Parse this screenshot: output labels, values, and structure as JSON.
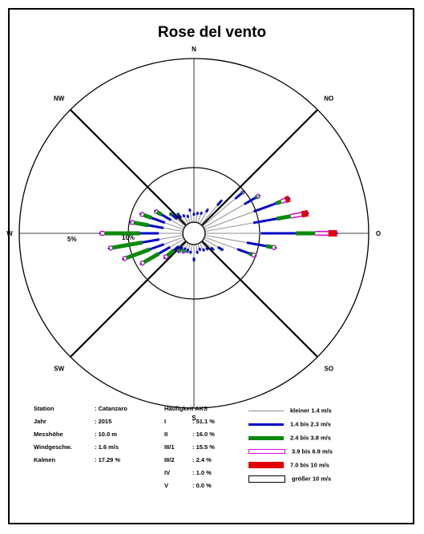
{
  "chart_data": {
    "type": "wind-rose",
    "title": "Rose del vento",
    "directions": [
      "N",
      "NO",
      "O",
      "SO",
      "S",
      "SW",
      "W",
      "NW"
    ],
    "ring_labels": [
      "5%",
      "10%"
    ],
    "sector_deg": 10,
    "classes": [
      {
        "name": "kleiner 1.4 m/s",
        "color": "#8c8c8c",
        "width": 1
      },
      {
        "name": "1.4 bis 2.3 m/s",
        "color": "#0000c8",
        "width": 3
      },
      {
        "name": "2.4 bis 3.8 m/s",
        "color": "#0a8a0a",
        "width": 5
      },
      {
        "name": "3.9 bis 6.9 m/s",
        "color": "#e000e0",
        "width": 6,
        "outline": true
      },
      {
        "name": "7.0 bis 10 m/s",
        "color": "#e00000",
        "width": 8
      },
      {
        "name": "größer 10 m/s",
        "color": "#000000",
        "width": 9,
        "outline": true
      }
    ],
    "sectors": [
      {
        "dir": 0,
        "v": [
          0.6,
          0.2,
          0,
          0,
          0,
          0
        ]
      },
      {
        "dir": 10,
        "v": [
          0.7,
          0.2,
          0,
          0,
          0,
          0
        ]
      },
      {
        "dir": 20,
        "v": [
          0.8,
          0.2,
          0,
          0,
          0,
          0
        ]
      },
      {
        "dir": 30,
        "v": [
          1.2,
          0.3,
          0,
          0,
          0,
          0
        ]
      },
      {
        "dir": 40,
        "v": [
          2.3,
          0.6,
          0,
          0,
          0,
          0
        ]
      },
      {
        "dir": 50,
        "v": [
          3.9,
          0.8,
          0.1,
          0.1,
          0,
          0
        ]
      },
      {
        "dir": 60,
        "v": [
          4.3,
          1.2,
          0.2,
          0.2,
          0,
          0
        ]
      },
      {
        "dir": 70,
        "v": [
          4.8,
          2.2,
          0.5,
          0.4,
          0.4,
          0
        ]
      },
      {
        "dir": 80,
        "v": [
          4.5,
          2.2,
          1.3,
          1.0,
          0.6,
          0
        ]
      },
      {
        "dir": 90,
        "v": [
          5.1,
          3.2,
          1.8,
          1.2,
          0.8,
          0
        ]
      },
      {
        "dir": 100,
        "v": [
          3.9,
          1.8,
          0.6,
          0.3,
          0,
          0
        ]
      },
      {
        "dir": 110,
        "v": [
          3.2,
          1.2,
          0.3,
          0.3,
          0,
          0
        ]
      },
      {
        "dir": 120,
        "v": [
          1.5,
          0.4,
          0.1,
          0,
          0,
          0
        ]
      },
      {
        "dir": 130,
        "v": [
          1.0,
          0.3,
          0,
          0,
          0,
          0
        ]
      },
      {
        "dir": 140,
        "v": [
          0.7,
          0.2,
          0,
          0,
          0,
          0
        ]
      },
      {
        "dir": 150,
        "v": [
          0.6,
          0.2,
          0,
          0,
          0,
          0
        ]
      },
      {
        "dir": 160,
        "v": [
          0.4,
          0.2,
          0,
          0,
          0,
          0
        ]
      },
      {
        "dir": 170,
        "v": [
          0.6,
          0.2,
          0,
          0,
          0,
          0
        ]
      },
      {
        "dir": 180,
        "v": [
          1.2,
          0.3,
          0,
          0,
          0,
          0
        ]
      },
      {
        "dir": 190,
        "v": [
          0.6,
          0.2,
          0,
          0,
          0,
          0
        ]
      },
      {
        "dir": 200,
        "v": [
          0.5,
          0.2,
          0.1,
          0,
          0,
          0
        ]
      },
      {
        "dir": 210,
        "v": [
          0.5,
          0.2,
          0.2,
          0.1,
          0,
          0
        ]
      },
      {
        "dir": 220,
        "v": [
          0.6,
          0.3,
          0.2,
          0.1,
          0,
          0
        ]
      },
      {
        "dir": 230,
        "v": [
          0.8,
          0.6,
          0.8,
          0.3,
          0,
          0
        ]
      },
      {
        "dir": 240,
        "v": [
          1.5,
          1.2,
          1.6,
          0.3,
          0,
          0
        ]
      },
      {
        "dir": 250,
        "v": [
          1.9,
          1.4,
          2.3,
          0.3,
          0,
          0
        ]
      },
      {
        "dir": 260,
        "v": [
          2.2,
          1.6,
          2.8,
          0.3,
          0,
          0
        ]
      },
      {
        "dir": 270,
        "v": [
          2.2,
          1.7,
          3.3,
          0.4,
          0,
          0
        ]
      },
      {
        "dir": 280,
        "v": [
          1.8,
          1.4,
          1.4,
          0.3,
          0,
          0
        ]
      },
      {
        "dir": 290,
        "v": [
          1.8,
          1.3,
          0.8,
          0.3,
          0,
          0
        ]
      },
      {
        "dir": 300,
        "v": [
          1.4,
          1.0,
          0.5,
          0.2,
          0,
          0
        ]
      },
      {
        "dir": 310,
        "v": [
          1.0,
          0.6,
          0.2,
          0,
          0,
          0
        ]
      },
      {
        "dir": 320,
        "v": [
          0.8,
          0.4,
          0.1,
          0,
          0,
          0
        ]
      },
      {
        "dir": 330,
        "v": [
          0.7,
          0.2,
          0,
          0,
          0,
          0
        ]
      },
      {
        "dir": 340,
        "v": [
          0.5,
          0.2,
          0,
          0,
          0,
          0
        ]
      },
      {
        "dir": 350,
        "v": [
          1.0,
          0.2,
          0,
          0,
          0,
          0
        ]
      }
    ],
    "rmax": 15
  },
  "info": {
    "col1": [
      {
        "k": "Station",
        "v": ": Catanzaro"
      },
      {
        "k": "Jahr",
        "v": ": 2015"
      },
      {
        "k": "Messhöhe",
        "v": ": 10.0 m"
      },
      {
        "k": "Windgeschw.",
        "v": ": 1.6 m/s"
      },
      {
        "k": "Kalmen",
        "v": ": 17.29 %"
      }
    ],
    "col2_header": "Häufigkeit AKS",
    "col2": [
      {
        "k": "I",
        "v": ": 51.1 %"
      },
      {
        "k": "II",
        "v": ": 16.0 %"
      },
      {
        "k": "III/1",
        "v": ": 15.5 %"
      },
      {
        "k": "III/2",
        "v": ": 2.4 %"
      },
      {
        "k": "IV",
        "v": ": 1.0 %"
      },
      {
        "k": "V",
        "v": ": 0.0 %"
      }
    ]
  },
  "legend_items": [
    {
      "label": "kleiner 1.4 m/s",
      "color": "#8c8c8c",
      "h": 1,
      "outline": false
    },
    {
      "label": "1.4 bis 2.3 m/s",
      "color": "#0000c8",
      "h": 3,
      "outline": false
    },
    {
      "label": "2.4 bis 3.8 m/s",
      "color": "#0a8a0a",
      "h": 5,
      "outline": false
    },
    {
      "label": "3.9 bis 6.9 m/s",
      "color": "#e000e0",
      "h": 6,
      "outline": true
    },
    {
      "label": "7.0 bis 10 m/s",
      "color": "#e00000",
      "h": 8,
      "outline": false
    },
    {
      "label": "größer 10 m/s",
      "color": "#000000",
      "h": 9,
      "outline": true
    }
  ]
}
